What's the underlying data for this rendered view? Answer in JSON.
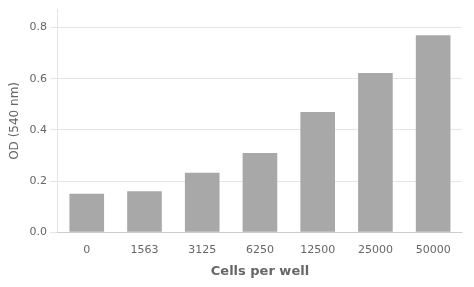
{
  "chart_data": {
    "type": "bar",
    "categories": [
      "0",
      "1563",
      "3125",
      "6250",
      "12500",
      "25000",
      "50000"
    ],
    "values": [
      0.15,
      0.16,
      0.232,
      0.31,
      0.47,
      0.622,
      0.77
    ],
    "color": "#a8a8a8",
    "xlabel": "Cells per well",
    "ylabel": "OD (540 nm)",
    "ylim": [
      0,
      0.87
    ],
    "yticks": [
      {
        "value": 0,
        "label": "0.0"
      },
      {
        "value": 0.2,
        "label": "0.2"
      },
      {
        "value": 0.4,
        "label": "0.4"
      },
      {
        "value": 0.6,
        "label": "0.6"
      },
      {
        "value": 0.8,
        "label": "0.8"
      }
    ],
    "grid": true
  }
}
